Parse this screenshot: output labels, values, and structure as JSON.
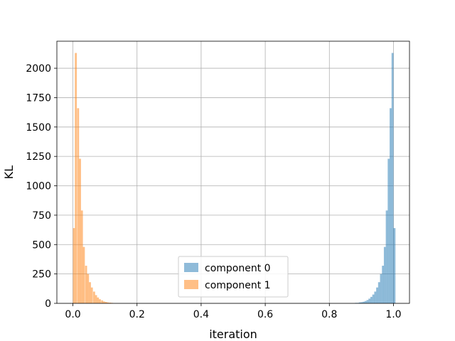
{
  "chart_data": {
    "type": "histogram",
    "title": "",
    "xlabel": "iteration",
    "ylabel": "KL",
    "xlim": [
      -0.05,
      1.05
    ],
    "ylim": [
      0,
      2230
    ],
    "xticks": [
      0.0,
      0.2,
      0.4,
      0.6,
      0.8,
      1.0
    ],
    "xtick_labels": [
      "0.0",
      "0.2",
      "0.4",
      "0.6",
      "0.8",
      "1.0"
    ],
    "yticks": [
      0,
      250,
      500,
      750,
      1000,
      1250,
      1500,
      1750,
      2000
    ],
    "ytick_labels": [
      "0",
      "250",
      "500",
      "750",
      "1000",
      "1250",
      "1500",
      "1750",
      "2000"
    ],
    "grid": true,
    "legend_position": "lower center",
    "series": [
      {
        "name": "component 0",
        "color": "#1f77b4",
        "alpha": 0.5,
        "bin_width": 0.00625,
        "bins": [
          [
            0.88,
            4
          ],
          [
            0.886,
            4
          ],
          [
            0.892,
            8
          ],
          [
            0.898,
            10
          ],
          [
            0.904,
            14
          ],
          [
            0.91,
            20
          ],
          [
            0.916,
            28
          ],
          [
            0.922,
            40
          ],
          [
            0.928,
            55
          ],
          [
            0.934,
            75
          ],
          [
            0.94,
            100
          ],
          [
            0.946,
            135
          ],
          [
            0.952,
            180
          ],
          [
            0.958,
            250
          ],
          [
            0.964,
            320
          ],
          [
            0.97,
            480
          ],
          [
            0.976,
            790
          ],
          [
            0.982,
            1230
          ],
          [
            0.988,
            1660
          ],
          [
            0.994,
            2130
          ],
          [
            1.0,
            640
          ]
        ]
      },
      {
        "name": "component 1",
        "color": "#ff7f0e",
        "alpha": 0.5,
        "bin_width": 0.00625,
        "bins": [
          [
            0.0,
            640
          ],
          [
            0.006,
            2130
          ],
          [
            0.013,
            1660
          ],
          [
            0.019,
            1230
          ],
          [
            0.025,
            790
          ],
          [
            0.031,
            480
          ],
          [
            0.038,
            320
          ],
          [
            0.044,
            250
          ],
          [
            0.05,
            180
          ],
          [
            0.056,
            135
          ],
          [
            0.063,
            100
          ],
          [
            0.069,
            70
          ],
          [
            0.075,
            50
          ],
          [
            0.081,
            35
          ],
          [
            0.088,
            25
          ],
          [
            0.094,
            16
          ],
          [
            0.1,
            12
          ],
          [
            0.106,
            8
          ],
          [
            0.113,
            6
          ],
          [
            0.119,
            4
          ]
        ]
      }
    ]
  }
}
